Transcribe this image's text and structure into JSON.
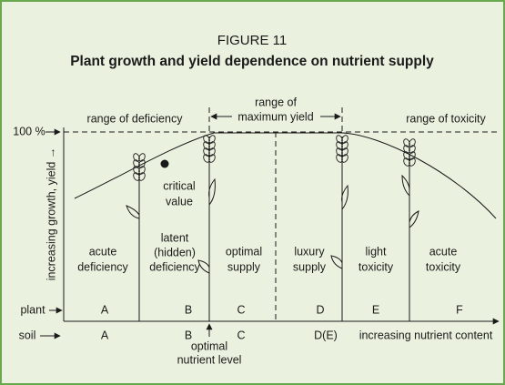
{
  "figure_label": "FIGURE 11",
  "title": "Plant growth and yield dependence on nutrient supply",
  "y_axis_label": "increasing growth, yield →",
  "y_ref": "100 %",
  "ranges": {
    "deficiency": "range of deficiency",
    "maximum": [
      "range of",
      "maximum yield"
    ],
    "toxicity": "range of toxicity"
  },
  "critical": [
    "critical",
    "value"
  ],
  "zones": [
    [
      "acute",
      "deficiency"
    ],
    [
      "latent",
      "(hidden)",
      "deficiency"
    ],
    [
      "optimal",
      "supply"
    ],
    [
      "luxury",
      "supply"
    ],
    [
      "light",
      "toxicity"
    ],
    [
      "acute",
      "toxicity"
    ]
  ],
  "plant_row": {
    "label": "plant",
    "letters": [
      "A",
      "B",
      "C",
      "D",
      "E",
      "F"
    ]
  },
  "soil_row": {
    "label": "soil",
    "letters": [
      "A",
      "B",
      "C",
      "D(E)"
    ],
    "axis_label": "increasing nutrient content"
  },
  "optimal_level": [
    "optimal",
    "nutrient level"
  ]
}
